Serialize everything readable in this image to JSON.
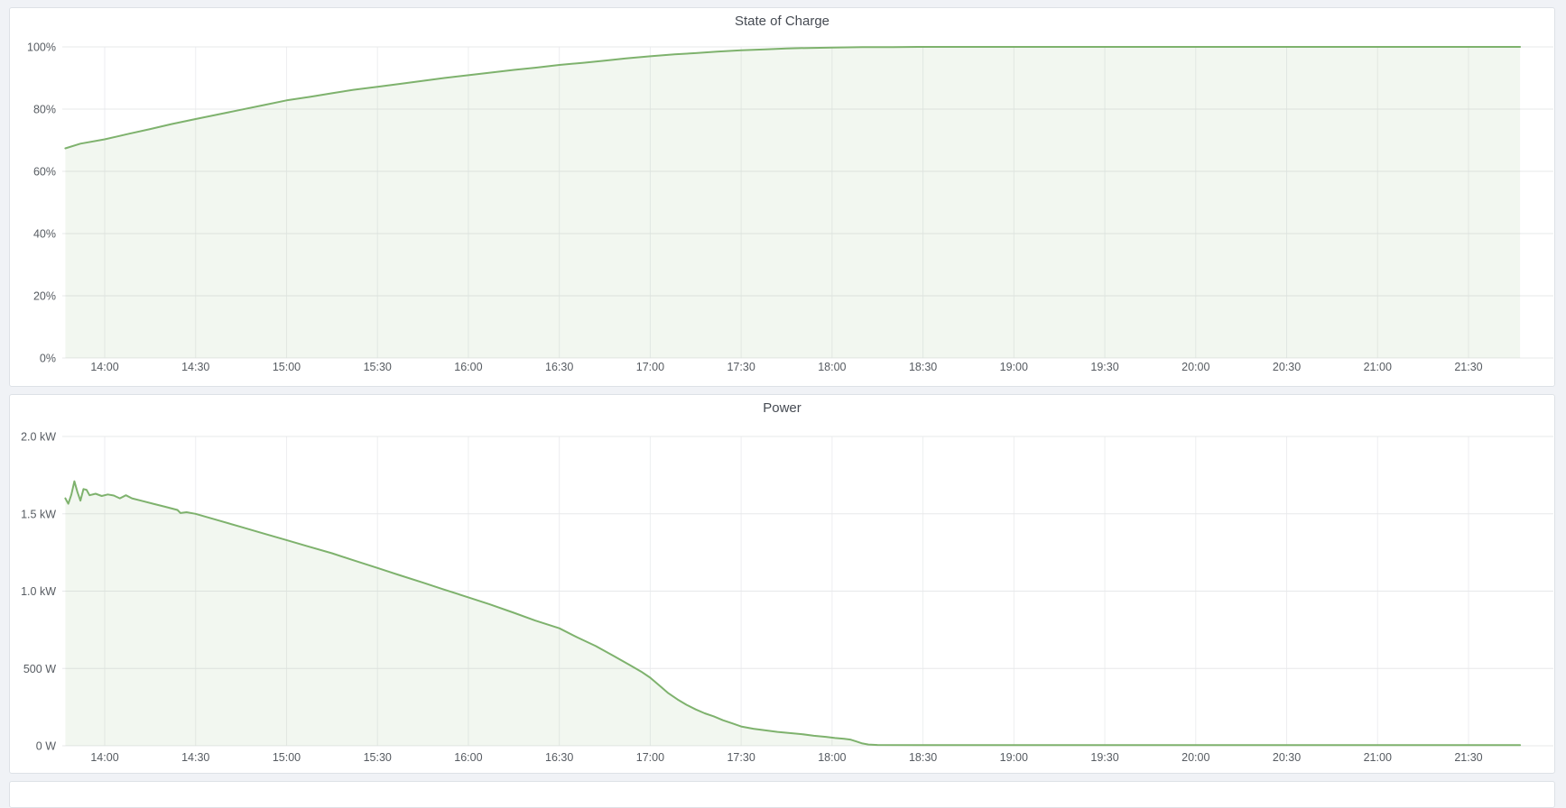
{
  "page": {
    "background_color": "#f0f2f6",
    "panel_background": "#ffffff",
    "panel_border_color": "#dde1e6"
  },
  "chart_data": [
    {
      "type": "area",
      "title": "State of Charge",
      "xlabel": "",
      "ylabel": "",
      "x_domain": [
        "13:46",
        "21:58"
      ],
      "x_ticks": [
        "14:00",
        "14:30",
        "15:00",
        "15:30",
        "16:00",
        "16:30",
        "17:00",
        "17:30",
        "18:00",
        "18:30",
        "19:00",
        "19:30",
        "20:00",
        "20:30",
        "21:00",
        "21:30"
      ],
      "ylim": [
        0,
        100
      ],
      "y_ticks": [
        {
          "value": 0,
          "label": "0%"
        },
        {
          "value": 20,
          "label": "20%"
        },
        {
          "value": 40,
          "label": "40%"
        },
        {
          "value": 60,
          "label": "60%"
        },
        {
          "value": 80,
          "label": "80%"
        },
        {
          "value": 100,
          "label": "100%"
        }
      ],
      "grid": true,
      "legend": false,
      "line_color": "#7eb26d",
      "fill_color": "rgba(126,178,109,0.10)",
      "points": [
        [
          "13:47",
          67.4
        ],
        [
          "13:52",
          68.9
        ],
        [
          "14:00",
          70.3
        ],
        [
          "14:08",
          72.1
        ],
        [
          "14:15",
          73.6
        ],
        [
          "14:22",
          75.2
        ],
        [
          "14:30",
          76.8
        ],
        [
          "14:38",
          78.4
        ],
        [
          "14:45",
          79.8
        ],
        [
          "14:52",
          81.2
        ],
        [
          "15:00",
          82.8
        ],
        [
          "15:08",
          84.0
        ],
        [
          "15:15",
          85.1
        ],
        [
          "15:22",
          86.2
        ],
        [
          "15:30",
          87.2
        ],
        [
          "15:38",
          88.2
        ],
        [
          "15:45",
          89.1
        ],
        [
          "15:52",
          90.0
        ],
        [
          "16:00",
          90.9
        ],
        [
          "16:08",
          91.8
        ],
        [
          "16:15",
          92.6
        ],
        [
          "16:22",
          93.3
        ],
        [
          "16:30",
          94.2
        ],
        [
          "16:38",
          94.9
        ],
        [
          "16:45",
          95.6
        ],
        [
          "16:52",
          96.3
        ],
        [
          "17:00",
          97.0
        ],
        [
          "17:08",
          97.6
        ],
        [
          "17:15",
          98.0
        ],
        [
          "17:22",
          98.5
        ],
        [
          "17:30",
          98.9
        ],
        [
          "17:38",
          99.2
        ],
        [
          "17:45",
          99.5
        ],
        [
          "17:52",
          99.65
        ],
        [
          "18:00",
          99.8
        ],
        [
          "18:10",
          99.9
        ],
        [
          "18:20",
          99.95
        ],
        [
          "18:30",
          100
        ],
        [
          "19:00",
          100
        ],
        [
          "19:30",
          100
        ],
        [
          "20:00",
          100
        ],
        [
          "20:30",
          100
        ],
        [
          "21:00",
          100
        ],
        [
          "21:30",
          100
        ],
        [
          "21:47",
          100
        ]
      ]
    },
    {
      "type": "area",
      "title": "Power",
      "xlabel": "",
      "ylabel": "",
      "x_domain": [
        "13:46",
        "21:58"
      ],
      "x_ticks": [
        "14:00",
        "14:30",
        "15:00",
        "15:30",
        "16:00",
        "16:30",
        "17:00",
        "17:30",
        "18:00",
        "18:30",
        "19:00",
        "19:30",
        "20:00",
        "20:30",
        "21:00",
        "21:30"
      ],
      "ylim": [
        0,
        2000
      ],
      "y_ticks": [
        {
          "value": 0,
          "label": "0 W"
        },
        {
          "value": 500,
          "label": "500 W"
        },
        {
          "value": 1000,
          "label": "1.0 kW"
        },
        {
          "value": 1500,
          "label": "1.5 kW"
        },
        {
          "value": 2000,
          "label": "2.0 kW"
        }
      ],
      "grid": true,
      "legend": false,
      "line_color": "#7eb26d",
      "fill_color": "rgba(126,178,109,0.10)",
      "points": [
        [
          "13:47",
          1600
        ],
        [
          "13:48",
          1565
        ],
        [
          "13:49",
          1625
        ],
        [
          "13:50",
          1710
        ],
        [
          "13:51",
          1640
        ],
        [
          "13:52",
          1585
        ],
        [
          "13:53",
          1660
        ],
        [
          "13:54",
          1655
        ],
        [
          "13:55",
          1620
        ],
        [
          "13:57",
          1630
        ],
        [
          "13:59",
          1615
        ],
        [
          "14:01",
          1625
        ],
        [
          "14:03",
          1618
        ],
        [
          "14:05",
          1600
        ],
        [
          "14:07",
          1620
        ],
        [
          "14:09",
          1600
        ],
        [
          "14:12",
          1585
        ],
        [
          "14:16",
          1565
        ],
        [
          "14:20",
          1545
        ],
        [
          "14:24",
          1525
        ],
        [
          "14:25",
          1505
        ],
        [
          "14:27",
          1510
        ],
        [
          "14:30",
          1500
        ],
        [
          "14:37",
          1460
        ],
        [
          "14:45",
          1415
        ],
        [
          "14:52",
          1375
        ],
        [
          "15:00",
          1330
        ],
        [
          "15:07",
          1290
        ],
        [
          "15:15",
          1245
        ],
        [
          "15:22",
          1200
        ],
        [
          "15:30",
          1150
        ],
        [
          "15:37",
          1105
        ],
        [
          "15:45",
          1055
        ],
        [
          "15:52",
          1010
        ],
        [
          "16:00",
          960
        ],
        [
          "16:07",
          915
        ],
        [
          "16:15",
          860
        ],
        [
          "16:22",
          810
        ],
        [
          "16:30",
          760
        ],
        [
          "16:36",
          700
        ],
        [
          "16:42",
          645
        ],
        [
          "16:48",
          580
        ],
        [
          "16:53",
          525
        ],
        [
          "16:57",
          480
        ],
        [
          "17:00",
          440
        ],
        [
          "17:03",
          390
        ],
        [
          "17:06",
          340
        ],
        [
          "17:09",
          300
        ],
        [
          "17:12",
          265
        ],
        [
          "17:15",
          235
        ],
        [
          "17:18",
          210
        ],
        [
          "17:21",
          190
        ],
        [
          "17:24",
          165
        ],
        [
          "17:27",
          145
        ],
        [
          "17:30",
          125
        ],
        [
          "17:34",
          110
        ],
        [
          "17:38",
          100
        ],
        [
          "17:42",
          90
        ],
        [
          "17:46",
          82
        ],
        [
          "17:50",
          75
        ],
        [
          "17:54",
          65
        ],
        [
          "17:58",
          58
        ],
        [
          "18:01",
          50
        ],
        [
          "18:04",
          45
        ],
        [
          "18:06",
          40
        ],
        [
          "18:08",
          28
        ],
        [
          "18:10",
          15
        ],
        [
          "18:12",
          8
        ],
        [
          "18:15",
          5
        ],
        [
          "18:30",
          4
        ],
        [
          "19:00",
          4
        ],
        [
          "19:30",
          4
        ],
        [
          "20:00",
          4
        ],
        [
          "20:30",
          4
        ],
        [
          "21:00",
          4
        ],
        [
          "21:30",
          4
        ],
        [
          "21:47",
          4
        ]
      ]
    }
  ]
}
